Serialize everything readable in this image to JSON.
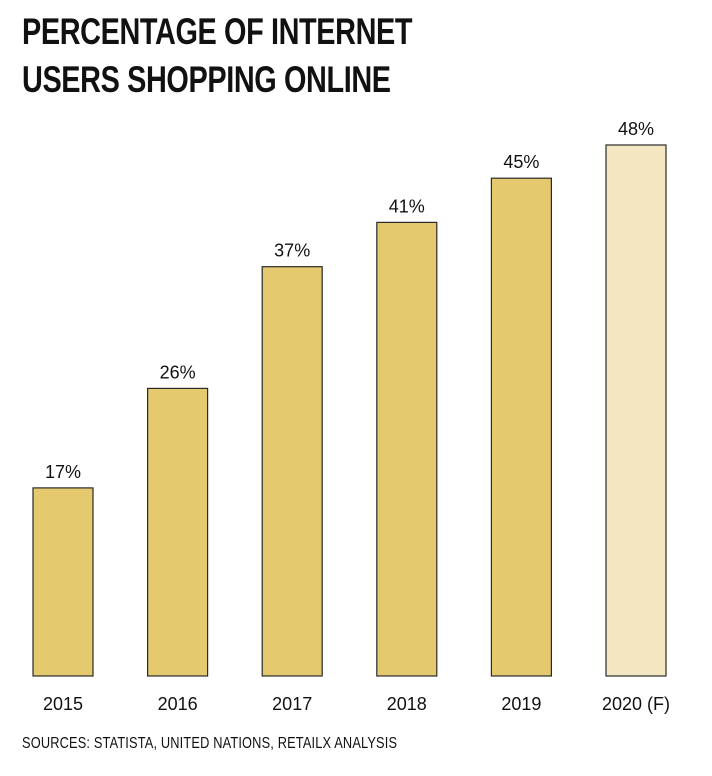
{
  "title_lines": [
    "PERCENTAGE OF INTERNET",
    "USERS SHOPPING ONLINE"
  ],
  "source": "SOURCES: STATISTA, UNITED NATIONS, RETAILX ANALYSIS",
  "colors": {
    "bar": "#e4c96f",
    "bar_forecast": "#f3e6c0",
    "bar_stroke": "#2a2a2a",
    "text": "#111111"
  },
  "chart_data": {
    "type": "bar",
    "title": "PERCENTAGE OF INTERNET USERS SHOPPING ONLINE",
    "categories": [
      "2015",
      "2016",
      "2017",
      "2018",
      "2019",
      "2020 (F)"
    ],
    "values": [
      17,
      26,
      37,
      41,
      45,
      48
    ],
    "data_labels": [
      "17%",
      "26%",
      "37%",
      "41%",
      "45%",
      "48%"
    ],
    "forecast_index": 5,
    "ylim": [
      0,
      48
    ],
    "xlabel": "",
    "ylabel": "",
    "grid": false
  }
}
